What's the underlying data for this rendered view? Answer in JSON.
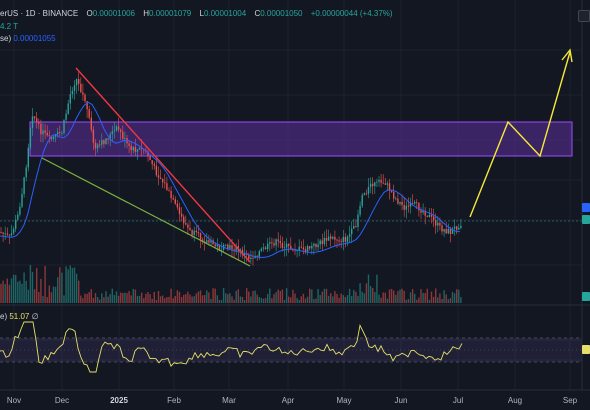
{
  "header": {
    "symbol_line": "erUS · 1D · BINANCE",
    "o_label": "O",
    "o_value": "0.00001006",
    "h_label": "H",
    "h_value": "0.00001079",
    "l_label": "L",
    "l_value": "0.00001004",
    "c_label": "C",
    "c_value": "0.00001050",
    "change": "+0.00000044 (+4.37%)",
    "volume_line": "4.2 T",
    "ma_line_label": "se)",
    "ma_line_value": "0.00001055",
    "rsi_label": "e)",
    "rsi_value": "51.07",
    "rsi_icon": "∅"
  },
  "x_axis": {
    "labels": [
      "Nov",
      "Dec",
      "2025",
      "Feb",
      "Mar",
      "Apr",
      "May",
      "Jun",
      "Jul",
      "Aug",
      "Sep"
    ]
  },
  "colors": {
    "up": "#26a69a",
    "down": "#ef5350",
    "ma": "#2962ff",
    "red_trendline": "#f23645",
    "green_trendline": "#7cb342",
    "zone_fill": "#4a2a7a",
    "zone_border": "#9c4dff",
    "projection": "#f6e93a",
    "rsi_line": "#e6e06a",
    "rsi_band": "#7e57c2"
  },
  "chart_data": {
    "type": "candlestick",
    "timeframe": "1D",
    "x": [
      "Nov",
      "Dec",
      "2025",
      "Feb",
      "Mar",
      "Apr",
      "May",
      "Jun",
      "Jul",
      "Aug",
      "Sep"
    ],
    "price_close_approx": [
      8.5e-06,
      1.45e-05,
      1.25e-05,
      1.05e-05,
      7.5e-06,
      7.8e-06,
      9.5e-06,
      1.15e-05,
      1.05e-05
    ],
    "last_close": 1.05e-05,
    "moving_average_last": 1.055e-05,
    "rsi_last": 51.07,
    "annotations": [
      "resistance zone (purple box)",
      "descending red trendline",
      "descending green trendline",
      "yellow projected zigzag to upside"
    ]
  }
}
